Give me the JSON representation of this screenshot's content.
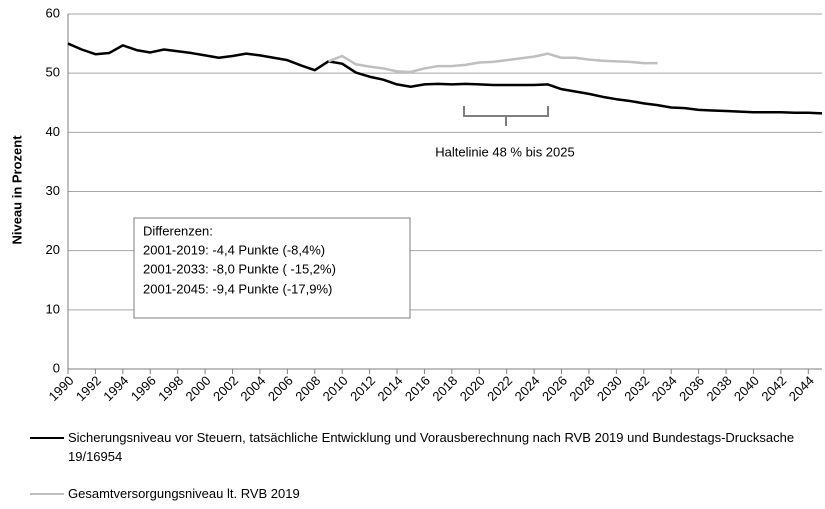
{
  "chart_data": {
    "type": "line",
    "y_label": "Niveau in Prozent",
    "x": [
      1990,
      1991,
      1992,
      1993,
      1994,
      1995,
      1996,
      1997,
      1998,
      1999,
      2000,
      2001,
      2002,
      2003,
      2004,
      2005,
      2006,
      2007,
      2008,
      2009,
      2010,
      2011,
      2012,
      2013,
      2014,
      2015,
      2016,
      2017,
      2018,
      2019,
      2020,
      2021,
      2022,
      2023,
      2024,
      2025,
      2026,
      2027,
      2028,
      2029,
      2030,
      2031,
      2032,
      2033,
      2034,
      2035,
      2036,
      2037,
      2038,
      2039,
      2040,
      2041,
      2042,
      2043,
      2044,
      2045
    ],
    "series": [
      {
        "name": "Sicherungsniveau vor Steuern, tatsächliche Entwicklung und Vorausberechnung nach RVB 2019 und Bundestags-Drucksache 19/16954",
        "color": "#000000",
        "values": [
          55.0,
          54.0,
          53.2,
          53.4,
          54.7,
          53.9,
          53.5,
          54.0,
          53.7,
          53.4,
          53.0,
          52.6,
          52.9,
          53.3,
          53.0,
          52.6,
          52.2,
          51.3,
          50.5,
          52.0,
          51.6,
          50.1,
          49.4,
          48.9,
          48.1,
          47.7,
          48.1,
          48.2,
          48.1,
          48.2,
          48.1,
          48.0,
          48.0,
          48.0,
          48.0,
          48.1,
          47.3,
          46.9,
          46.5,
          46.0,
          45.6,
          45.3,
          44.9,
          44.6,
          44.2,
          44.1,
          43.8,
          43.7,
          43.6,
          43.5,
          43.4,
          43.4,
          43.4,
          43.3,
          43.3,
          43.2
        ]
      },
      {
        "name": "Gesamtversorgungsniveau lt. RVB 2019",
        "color": "#bfbfbf",
        "values": [
          null,
          null,
          null,
          null,
          null,
          null,
          null,
          null,
          null,
          null,
          null,
          null,
          null,
          null,
          null,
          null,
          null,
          null,
          null,
          52.0,
          52.9,
          51.5,
          51.1,
          50.8,
          50.3,
          50.2,
          50.8,
          51.2,
          51.2,
          51.4,
          51.8,
          51.9,
          52.2,
          52.5,
          52.8,
          53.3,
          52.6,
          52.6,
          52.3,
          52.1,
          52.0,
          51.9,
          51.7,
          51.7,
          null,
          null,
          null,
          null,
          null,
          null,
          null,
          null,
          null,
          null,
          null,
          null
        ]
      }
    ],
    "xlim": [
      1990,
      2045
    ],
    "xticks": [
      1990,
      1992,
      1994,
      1996,
      1998,
      2000,
      2002,
      2004,
      2006,
      2008,
      2010,
      2012,
      2014,
      2016,
      2018,
      2020,
      2022,
      2024,
      2026,
      2028,
      2030,
      2032,
      2034,
      2036,
      2038,
      2040,
      2042,
      2044
    ],
    "ylim": [
      0,
      60
    ],
    "yticks": [
      0,
      10,
      20,
      30,
      40,
      50,
      60
    ],
    "grid": true,
    "annotations": {
      "haltelinie": "Haltelinie 48 % bis 2025",
      "differenzen": [
        "Differenzen:",
        "2001-2019: -4,4 Punkte (-8,4%)",
        "2001-2033: -8,0 Punkte ( -15,2%)",
        "2001-2045: -9,4 Punkte (-17,9%)"
      ]
    }
  }
}
